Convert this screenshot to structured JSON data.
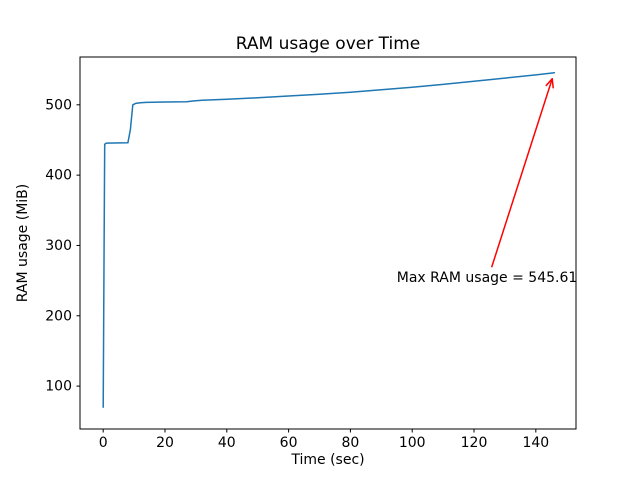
{
  "chart_data": {
    "type": "line",
    "title": "RAM usage over Time",
    "xlabel": "Time (sec)",
    "ylabel": "RAM usage (MiB)",
    "xlim": [
      -7.5,
      153
    ],
    "ylim": [
      39,
      568
    ],
    "xticks": [
      0,
      20,
      40,
      60,
      80,
      100,
      120,
      140
    ],
    "yticks": [
      100,
      200,
      300,
      400,
      500
    ],
    "grid": false,
    "legend": "none",
    "line_color": "#1f77b4",
    "axes_color": "#000000",
    "background_color": "#ffffff",
    "series": [
      {
        "name": "RAM usage",
        "points": [
          [
            0,
            70
          ],
          [
            0.3,
            300
          ],
          [
            0.5,
            444
          ],
          [
            1,
            445.5
          ],
          [
            8,
            446
          ],
          [
            8.8,
            465
          ],
          [
            9.6,
            500
          ],
          [
            10.5,
            502
          ],
          [
            12,
            503
          ],
          [
            14,
            503.5
          ],
          [
            20,
            504
          ],
          [
            27,
            504.5
          ],
          [
            29,
            505.5
          ],
          [
            32,
            506.5
          ],
          [
            40,
            508
          ],
          [
            50,
            510
          ],
          [
            60,
            512.5
          ],
          [
            70,
            515
          ],
          [
            80,
            518
          ],
          [
            90,
            521.5
          ],
          [
            100,
            525
          ],
          [
            110,
            529
          ],
          [
            120,
            533.5
          ],
          [
            130,
            538
          ],
          [
            140,
            542.5
          ],
          [
            146,
            545.61
          ]
        ]
      }
    ],
    "annotation": {
      "text": "Max RAM usage = 545.61",
      "color": "#ff0000",
      "text_xy": [
        95,
        248
      ],
      "arrow_tail_xy": [
        125.7,
        269
      ],
      "arrow_tip_xy": [
        145.3,
        537
      ]
    }
  }
}
